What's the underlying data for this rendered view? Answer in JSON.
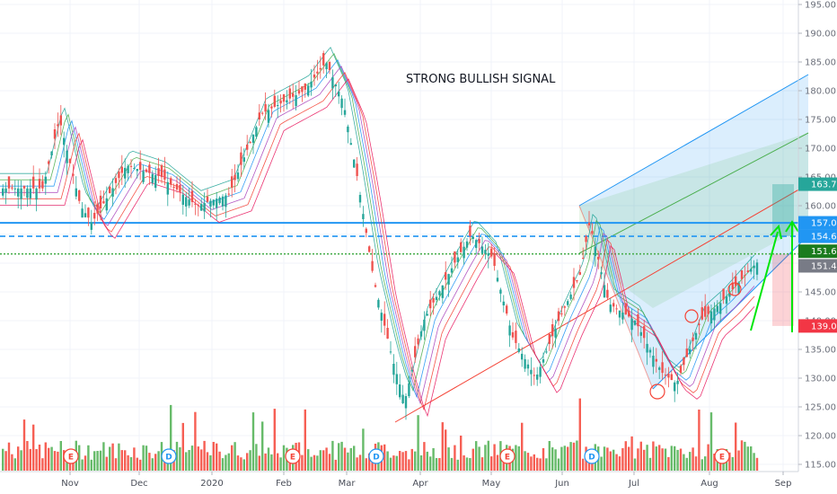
{
  "chart_data": {
    "type": "candlestick",
    "annotation": "STRONG BULLISH SIGNAL",
    "y_axis": {
      "range": [
        114.0,
        196.0
      ],
      "ticks": [
        "195.00",
        "190.00",
        "185.00",
        "180.00",
        "175.00",
        "170.00",
        "165.00",
        "160.00",
        "155.00",
        "150.00",
        "145.00",
        "140.00",
        "135.00",
        "130.00",
        "125.00",
        "120.00",
        "115.00"
      ]
    },
    "x_axis": {
      "labels": [
        "Nov",
        "Dec",
        "2020",
        "Feb",
        "Mar",
        "Apr",
        "May",
        "Jun",
        "Jul",
        "Aug",
        "Sep"
      ]
    },
    "horizontal_levels": [
      {
        "value": 157.02,
        "style": "solid",
        "color": "#2196f3"
      },
      {
        "value": 154.68,
        "style": "dashed",
        "color": "#2196f3"
      },
      {
        "value": 151.61,
        "style": "dotted",
        "color": "#4caf50"
      }
    ],
    "price_tags": [
      {
        "text": "163.74",
        "value": 163.74,
        "color": "#26a69a"
      },
      {
        "text": "157.02",
        "value": 157.02,
        "color": "#2196f3"
      },
      {
        "text": "154.68",
        "value": 154.68,
        "color": "#2196f3"
      },
      {
        "text": "151.61",
        "value": 151.61,
        "color": "#1b7c1e"
      },
      {
        "text": "151.41",
        "value": 151.41,
        "color": "#787b86"
      },
      {
        "text": "139.08",
        "value": 139.08,
        "color": "#f23645"
      }
    ],
    "events": [
      {
        "label": "E",
        "month": "Nov",
        "type": "earnings"
      },
      {
        "label": "D",
        "month": "Dec",
        "type": "dividend"
      },
      {
        "label": "E",
        "month": "Feb",
        "type": "earnings"
      },
      {
        "label": "D",
        "month": "Mar",
        "type": "dividend"
      },
      {
        "label": "E",
        "month": "May",
        "type": "earnings"
      },
      {
        "label": "D",
        "month": "Jun",
        "type": "dividend"
      },
      {
        "label": "E",
        "month": "Aug",
        "type": "earnings"
      }
    ],
    "series": [
      {
        "name": "price",
        "points": [
          {
            "date": "2019-10-15",
            "close": 163
          },
          {
            "date": "2019-10-25",
            "close": 175
          },
          {
            "date": "2019-11-05",
            "close": 160
          },
          {
            "date": "2019-11-10",
            "close": 157
          },
          {
            "date": "2019-11-25",
            "close": 167
          },
          {
            "date": "2019-12-10",
            "close": 165
          },
          {
            "date": "2019-12-25",
            "close": 160
          },
          {
            "date": "2020-01-08",
            "close": 162
          },
          {
            "date": "2020-01-22",
            "close": 176
          },
          {
            "date": "2020-02-10",
            "close": 180
          },
          {
            "date": "2020-02-20",
            "close": 185
          },
          {
            "date": "2020-02-28",
            "close": 178
          },
          {
            "date": "2020-03-05",
            "close": 165
          },
          {
            "date": "2020-03-12",
            "close": 147
          },
          {
            "date": "2020-03-20",
            "close": 133
          },
          {
            "date": "2020-03-25",
            "close": 126
          },
          {
            "date": "2020-04-02",
            "close": 140
          },
          {
            "date": "2020-04-15",
            "close": 150
          },
          {
            "date": "2020-04-22",
            "close": 155
          },
          {
            "date": "2020-05-01",
            "close": 151
          },
          {
            "date": "2020-05-10",
            "close": 137
          },
          {
            "date": "2020-05-20",
            "close": 130
          },
          {
            "date": "2020-05-30",
            "close": 140
          },
          {
            "date": "2020-06-08",
            "close": 148
          },
          {
            "date": "2020-06-12",
            "close": 157
          },
          {
            "date": "2020-06-20",
            "close": 143
          },
          {
            "date": "2020-07-01",
            "close": 140
          },
          {
            "date": "2020-07-12",
            "close": 131
          },
          {
            "date": "2020-07-18",
            "close": 129
          },
          {
            "date": "2020-07-28",
            "close": 140
          },
          {
            "date": "2020-08-05",
            "close": 143
          },
          {
            "date": "2020-08-18",
            "close": 149
          },
          {
            "date": "2020-08-25",
            "close": 152
          }
        ]
      }
    ]
  }
}
